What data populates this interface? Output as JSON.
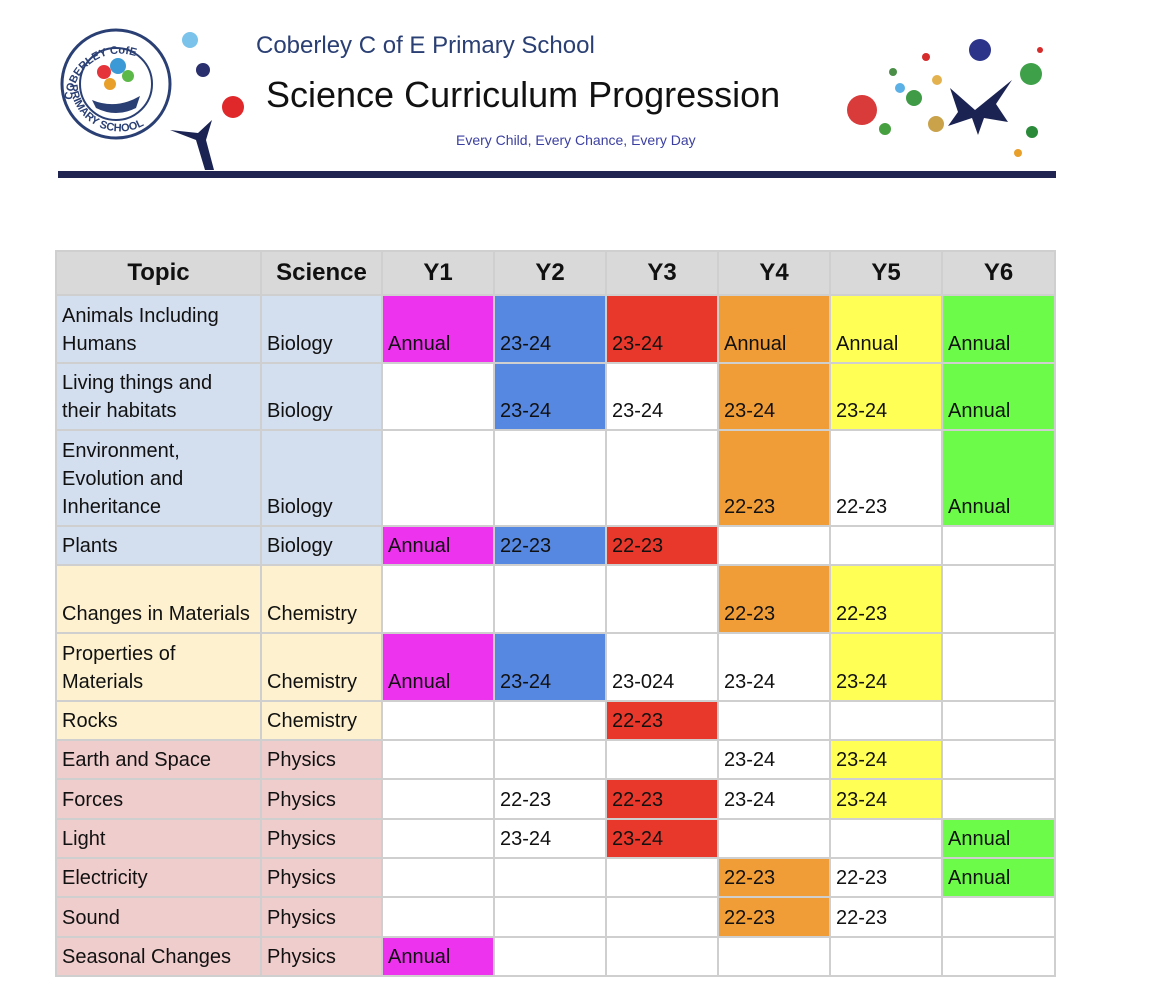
{
  "header": {
    "school": "Coberley C of E Primary School",
    "title": "Science Curriculum Progression",
    "tagline": "Every Child, Every Chance, Every Day",
    "logo_top": "COBERLEY CofE",
    "logo_bottom": "PRIMARY SCHOOL"
  },
  "table": {
    "columns": [
      "Topic",
      "Science",
      "Y1",
      "Y2",
      "Y3",
      "Y4",
      "Y5",
      "Y6"
    ],
    "science_colors": {
      "Biology": "#d3deef",
      "Chemistry": "#fdf1cf",
      "Physics": "#efcdcc"
    },
    "rows": [
      [
        "Animals Including Humans",
        "Biology",
        "Annual",
        "23-24",
        "23-24",
        "Annual",
        "Annual",
        "Annual"
      ],
      [
        "Living things and their habitats",
        "Biology",
        null,
        "23-24",
        "23-24",
        "23-24",
        "23-24",
        "Annual"
      ],
      [
        "Environment, Evolution and Inheritance",
        "Biology",
        null,
        null,
        null,
        "22-23",
        "22-23",
        "Annual"
      ],
      [
        "Plants",
        "Biology",
        "Annual",
        "22-23",
        "22-23",
        null,
        null,
        null
      ],
      [
        "Changes in Materials",
        "Chemistry",
        null,
        null,
        null,
        "22-23",
        "22-23",
        null
      ],
      [
        "Properties of Materials",
        "Chemistry",
        "Annual",
        "23-24",
        "23-024",
        "23-24",
        "23-24",
        null
      ],
      [
        "Rocks",
        "Chemistry",
        null,
        null,
        "22-23",
        null,
        null,
        null
      ],
      [
        "Earth and Space",
        "Physics",
        null,
        null,
        null,
        "23-24",
        "23-24",
        null
      ],
      [
        "Forces",
        "Physics",
        null,
        "22-23",
        "22-23",
        "23-24",
        "23-24",
        null
      ],
      [
        "Light",
        "Physics",
        null,
        "23-24",
        "23-24",
        null,
        null,
        "Annual"
      ],
      [
        "Electricity",
        "Physics",
        null,
        null,
        null,
        "22-23",
        "22-23",
        "Annual"
      ],
      [
        "Sound",
        "Physics",
        null,
        null,
        null,
        "22-23",
        "22-23",
        null
      ],
      [
        "Seasonal Changes",
        "Physics",
        "Annual",
        null,
        null,
        null,
        null,
        null
      ]
    ],
    "fills": [
      [
        "#ee33ee",
        "#5687e1",
        "#e7382b",
        "#f09d38",
        "#ffff55",
        "#6cfb48"
      ],
      [
        null,
        "#5687e1",
        null,
        "#f09d38",
        "#ffff55",
        "#6cfb48"
      ],
      [
        null,
        null,
        null,
        "#f09d38",
        null,
        "#6cfb48"
      ],
      [
        "#ee33ee",
        "#5687e1",
        "#e7382b",
        null,
        null,
        null
      ],
      [
        null,
        null,
        null,
        "#f09d38",
        "#ffff55",
        null
      ],
      [
        "#ee33ee",
        "#5687e1",
        null,
        null,
        "#ffff55",
        null
      ],
      [
        null,
        null,
        "#e7382b",
        null,
        null,
        null
      ],
      [
        null,
        null,
        null,
        null,
        "#ffff55",
        null
      ],
      [
        null,
        null,
        "#e7382b",
        null,
        "#ffff55",
        null
      ],
      [
        null,
        null,
        "#e7382b",
        null,
        null,
        "#6cfb48"
      ],
      [
        null,
        null,
        null,
        "#f09d38",
        null,
        "#6cfb48"
      ],
      [
        null,
        null,
        null,
        "#f09d38",
        null,
        null
      ],
      [
        "#ee33ee",
        null,
        null,
        null,
        null,
        null
      ]
    ]
  }
}
